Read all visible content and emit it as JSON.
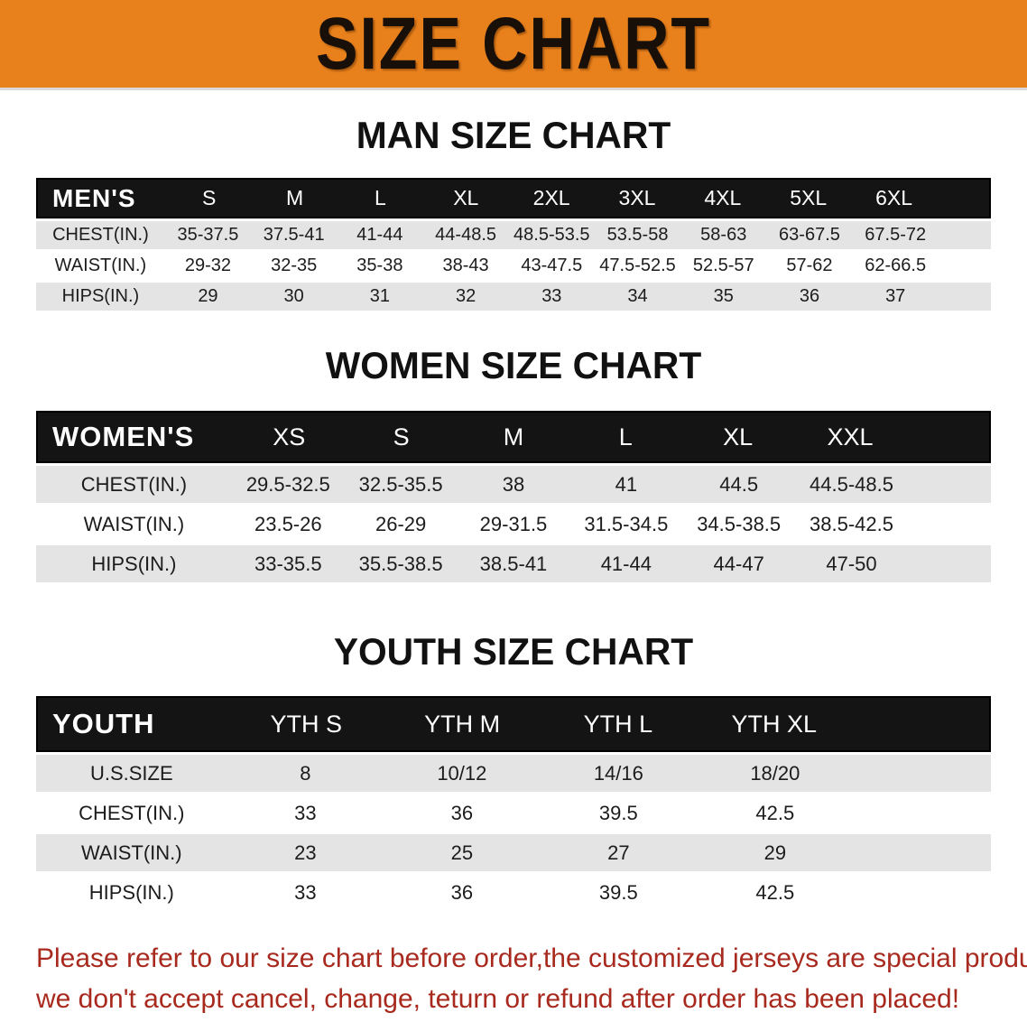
{
  "banner": {
    "title": "SIZE CHART",
    "bg_color": "#E8811C"
  },
  "colors": {
    "header_bar": "#141414",
    "row_gray": "#e4e4e4",
    "row_white": "#ffffff",
    "disclaimer_red": "#a8291e"
  },
  "men": {
    "heading": "MAN SIZE CHART",
    "label": "MEN'S",
    "sizes": [
      "S",
      "M",
      "L",
      "XL",
      "2XL",
      "3XL",
      "4XL",
      "5XL",
      "6XL"
    ],
    "rows": [
      {
        "label": "CHEST(IN.)",
        "values": [
          "35-37.5",
          "37.5-41",
          "41-44",
          "44-48.5",
          "48.5-53.5",
          "53.5-58",
          "58-63",
          "63-67.5",
          "67.5-72"
        ]
      },
      {
        "label": "WAIST(IN.)",
        "values": [
          "29-32",
          "32-35",
          "35-38",
          "38-43",
          "43-47.5",
          "47.5-52.5",
          "52.5-57",
          "57-62",
          "62-66.5"
        ]
      },
      {
        "label": "HIPS(IN.)",
        "values": [
          "29",
          "30",
          "31",
          "32",
          "33",
          "34",
          "35",
          "36",
          "37"
        ]
      }
    ]
  },
  "women": {
    "heading": "WOMEN SIZE CHART",
    "label": "WOMEN'S",
    "sizes": [
      "XS",
      "S",
      "M",
      "L",
      "XL",
      "XXL"
    ],
    "rows": [
      {
        "label": "CHEST(IN.)",
        "values": [
          "29.5-32.5",
          "32.5-35.5",
          "38",
          "41",
          "44.5",
          "44.5-48.5"
        ]
      },
      {
        "label": "WAIST(IN.)",
        "values": [
          "23.5-26",
          "26-29",
          "29-31.5",
          "31.5-34.5",
          "34.5-38.5",
          "38.5-42.5"
        ]
      },
      {
        "label": "HIPS(IN.)",
        "values": [
          "33-35.5",
          "35.5-38.5",
          "38.5-41",
          "41-44",
          "44-47",
          "47-50"
        ]
      }
    ]
  },
  "youth": {
    "heading": "YOUTH SIZE CHART",
    "label": "YOUTH",
    "sizes": [
      "YTH S",
      "YTH M",
      "YTH L",
      "YTH XL"
    ],
    "rows": [
      {
        "label": "U.S.SIZE",
        "values": [
          "8",
          "10/12",
          "14/16",
          "18/20"
        ]
      },
      {
        "label": "CHEST(IN.)",
        "values": [
          "33",
          "36",
          "39.5",
          "42.5"
        ]
      },
      {
        "label": "WAIST(IN.)",
        "values": [
          "23",
          "25",
          "27",
          "29"
        ]
      },
      {
        "label": "HIPS(IN.)",
        "values": [
          "33",
          "36",
          "39.5",
          "42.5"
        ]
      }
    ]
  },
  "disclaimer": {
    "line1": "Please refer to our size chart before order,the customized jerseys are special products,",
    "line2": "we don't accept cancel, change, teturn or refund after order has been placed!"
  }
}
